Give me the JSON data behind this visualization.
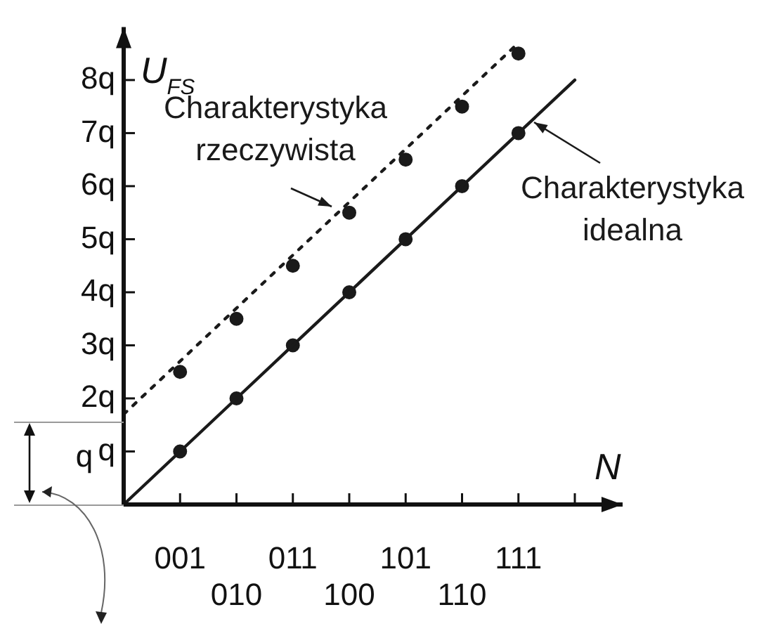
{
  "chart_data": {
    "type": "line",
    "xlabel": "N",
    "ylabel": "U$_{FS}$",
    "categories": [
      null,
      "001",
      "010",
      "011",
      "100",
      "101",
      "110",
      "111",
      null
    ],
    "ylim": [
      0,
      9
    ],
    "yticks": [
      {
        "value": 1,
        "label": "q"
      },
      {
        "value": 2,
        "label": "2q"
      },
      {
        "value": 3,
        "label": "3q"
      },
      {
        "value": 4,
        "label": "4q"
      },
      {
        "value": 5,
        "label": "5q"
      },
      {
        "value": 6,
        "label": "6q"
      },
      {
        "value": 7,
        "label": "7q"
      },
      {
        "value": 8,
        "label": "8q"
      }
    ],
    "series": [
      {
        "name": "Charakterystyka idealna",
        "color": "#1a1a1a",
        "line_style": "solid",
        "values": [
          0,
          1,
          2,
          3,
          4,
          5,
          6,
          7,
          8
        ]
      },
      {
        "name": "Charakterystyka rzeczywista",
        "color": "#1a1a1a",
        "line_style": "dotted",
        "values": [
          1.7,
          2.7,
          3.7,
          4.7,
          5.7,
          6.7,
          7.7,
          8.7,
          null
        ]
      },
      {
        "type": "scatter",
        "marker": "circle",
        "color": "#1a1a1a",
        "values": [
          null,
          1,
          2,
          3,
          4,
          5,
          6,
          7,
          null
        ]
      },
      {
        "type": "scatter",
        "marker": "circle",
        "color": "#1a1a1a",
        "values": [
          null,
          2.5,
          3.5,
          4.5,
          5.5,
          6.5,
          7.5,
          8.5,
          null
        ]
      }
    ],
    "annotations": [
      "q"
    ],
    "grid": false,
    "legend": "right"
  }
}
